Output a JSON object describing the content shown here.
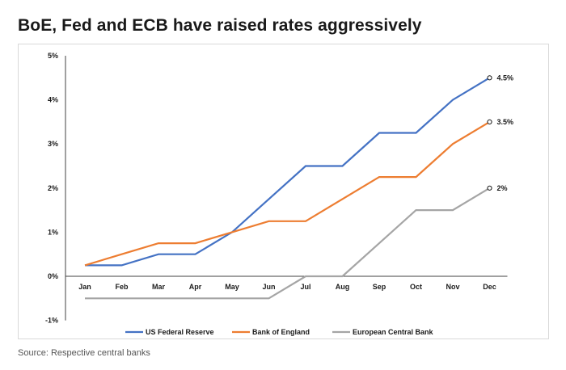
{
  "title": "BoE, Fed and ECB have raised rates aggressively",
  "source": "Source: Respective central banks",
  "chart_data": {
    "type": "line",
    "title": "BoE, Fed and ECB have raised rates aggressively",
    "x": [
      "Jan",
      "Feb",
      "Mar",
      "Apr",
      "May",
      "Jun",
      "Jul",
      "Aug",
      "Sep",
      "Oct",
      "Nov",
      "Dec"
    ],
    "y_ticks": [
      "5%",
      "4%",
      "3%",
      "2%",
      "1%",
      "0%",
      "-1%"
    ],
    "ylim": [
      -1,
      5
    ],
    "grid": false,
    "legend_position": "bottom",
    "series": [
      {
        "name": "US Federal Reserve",
        "color": "#4472c4",
        "values": [
          0.25,
          0.25,
          0.5,
          0.5,
          1.0,
          1.75,
          2.5,
          2.5,
          3.25,
          3.25,
          4.0,
          4.5
        ],
        "end_label": "4.5%"
      },
      {
        "name": "Bank of England",
        "color": "#ed7d31",
        "values": [
          0.25,
          0.5,
          0.75,
          0.75,
          1.0,
          1.25,
          1.25,
          1.75,
          2.25,
          2.25,
          3.0,
          3.5
        ],
        "end_label": "3.5%"
      },
      {
        "name": "European Central Bank",
        "color": "#a5a5a5",
        "values": [
          -0.5,
          -0.5,
          -0.5,
          -0.5,
          -0.5,
          -0.5,
          0.0,
          0.0,
          0.75,
          1.5,
          1.5,
          2.0
        ],
        "end_label": "2%"
      }
    ]
  }
}
